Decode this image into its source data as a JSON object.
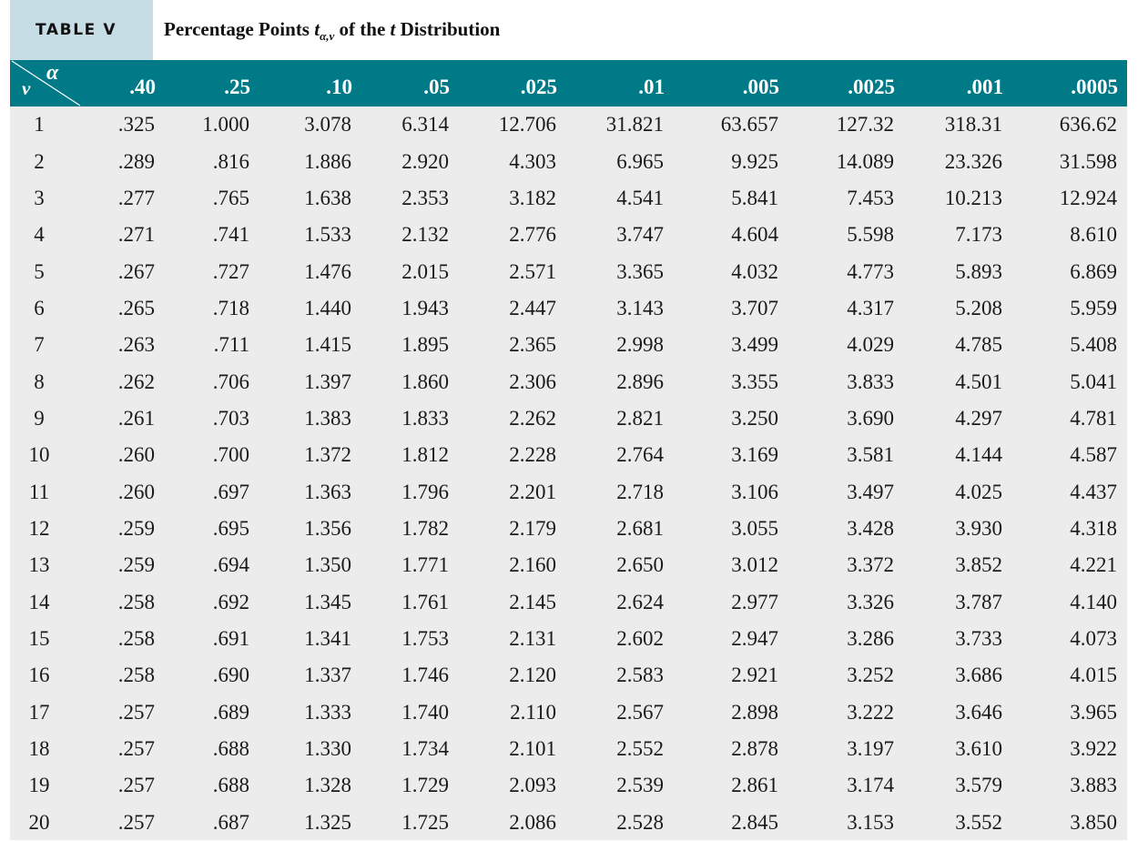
{
  "header": {
    "table_label": "TABLE V",
    "title_prefix": "Percentage Points ",
    "title_t": "t",
    "title_subscript": "α,ν",
    "title_middle": " of the ",
    "title_t2": "t",
    "title_suffix": " Distribution"
  },
  "table": {
    "corner_alpha": "α",
    "corner_nu": "ν",
    "columns": [
      ".40",
      ".25",
      ".10",
      ".05",
      ".025",
      ".01",
      ".005",
      ".0025",
      ".001",
      ".0005"
    ],
    "rows": [
      {
        "nu": "1",
        "values": [
          ".325",
          "1.000",
          "3.078",
          "6.314",
          "12.706",
          "31.821",
          "63.657",
          "127.32",
          "318.31",
          "636.62"
        ]
      },
      {
        "nu": "2",
        "values": [
          ".289",
          ".816",
          "1.886",
          "2.920",
          "4.303",
          "6.965",
          "9.925",
          "14.089",
          "23.326",
          "31.598"
        ]
      },
      {
        "nu": "3",
        "values": [
          ".277",
          ".765",
          "1.638",
          "2.353",
          "3.182",
          "4.541",
          "5.841",
          "7.453",
          "10.213",
          "12.924"
        ]
      },
      {
        "nu": "4",
        "values": [
          ".271",
          ".741",
          "1.533",
          "2.132",
          "2.776",
          "3.747",
          "4.604",
          "5.598",
          "7.173",
          "8.610"
        ]
      },
      {
        "nu": "5",
        "values": [
          ".267",
          ".727",
          "1.476",
          "2.015",
          "2.571",
          "3.365",
          "4.032",
          "4.773",
          "5.893",
          "6.869"
        ]
      },
      {
        "nu": "6",
        "values": [
          ".265",
          ".718",
          "1.440",
          "1.943",
          "2.447",
          "3.143",
          "3.707",
          "4.317",
          "5.208",
          "5.959"
        ]
      },
      {
        "nu": "7",
        "values": [
          ".263",
          ".711",
          "1.415",
          "1.895",
          "2.365",
          "2.998",
          "3.499",
          "4.029",
          "4.785",
          "5.408"
        ]
      },
      {
        "nu": "8",
        "values": [
          ".262",
          ".706",
          "1.397",
          "1.860",
          "2.306",
          "2.896",
          "3.355",
          "3.833",
          "4.501",
          "5.041"
        ]
      },
      {
        "nu": "9",
        "values": [
          ".261",
          ".703",
          "1.383",
          "1.833",
          "2.262",
          "2.821",
          "3.250",
          "3.690",
          "4.297",
          "4.781"
        ]
      },
      {
        "nu": "10",
        "values": [
          ".260",
          ".700",
          "1.372",
          "1.812",
          "2.228",
          "2.764",
          "3.169",
          "3.581",
          "4.144",
          "4.587"
        ]
      },
      {
        "nu": "11",
        "values": [
          ".260",
          ".697",
          "1.363",
          "1.796",
          "2.201",
          "2.718",
          "3.106",
          "3.497",
          "4.025",
          "4.437"
        ]
      },
      {
        "nu": "12",
        "values": [
          ".259",
          ".695",
          "1.356",
          "1.782",
          "2.179",
          "2.681",
          "3.055",
          "3.428",
          "3.930",
          "4.318"
        ]
      },
      {
        "nu": "13",
        "values": [
          ".259",
          ".694",
          "1.350",
          "1.771",
          "2.160",
          "2.650",
          "3.012",
          "3.372",
          "3.852",
          "4.221"
        ]
      },
      {
        "nu": "14",
        "values": [
          ".258",
          ".692",
          "1.345",
          "1.761",
          "2.145",
          "2.624",
          "2.977",
          "3.326",
          "3.787",
          "4.140"
        ]
      },
      {
        "nu": "15",
        "values": [
          ".258",
          ".691",
          "1.341",
          "1.753",
          "2.131",
          "2.602",
          "2.947",
          "3.286",
          "3.733",
          "4.073"
        ]
      },
      {
        "nu": "16",
        "values": [
          ".258",
          ".690",
          "1.337",
          "1.746",
          "2.120",
          "2.583",
          "2.921",
          "3.252",
          "3.686",
          "4.015"
        ]
      },
      {
        "nu": "17",
        "values": [
          ".257",
          ".689",
          "1.333",
          "1.740",
          "2.110",
          "2.567",
          "2.898",
          "3.222",
          "3.646",
          "3.965"
        ]
      },
      {
        "nu": "18",
        "values": [
          ".257",
          ".688",
          "1.330",
          "1.734",
          "2.101",
          "2.552",
          "2.878",
          "3.197",
          "3.610",
          "3.922"
        ]
      },
      {
        "nu": "19",
        "values": [
          ".257",
          ".688",
          "1.328",
          "1.729",
          "2.093",
          "2.539",
          "2.861",
          "3.174",
          "3.579",
          "3.883"
        ]
      },
      {
        "nu": "20",
        "values": [
          ".257",
          ".687",
          "1.325",
          "1.725",
          "2.086",
          "2.528",
          "2.845",
          "3.153",
          "3.552",
          "3.850"
        ]
      }
    ]
  },
  "colors": {
    "header_bg": "#007a87",
    "tab_bg": "#c6dde6",
    "body_bg": "#ececec"
  }
}
